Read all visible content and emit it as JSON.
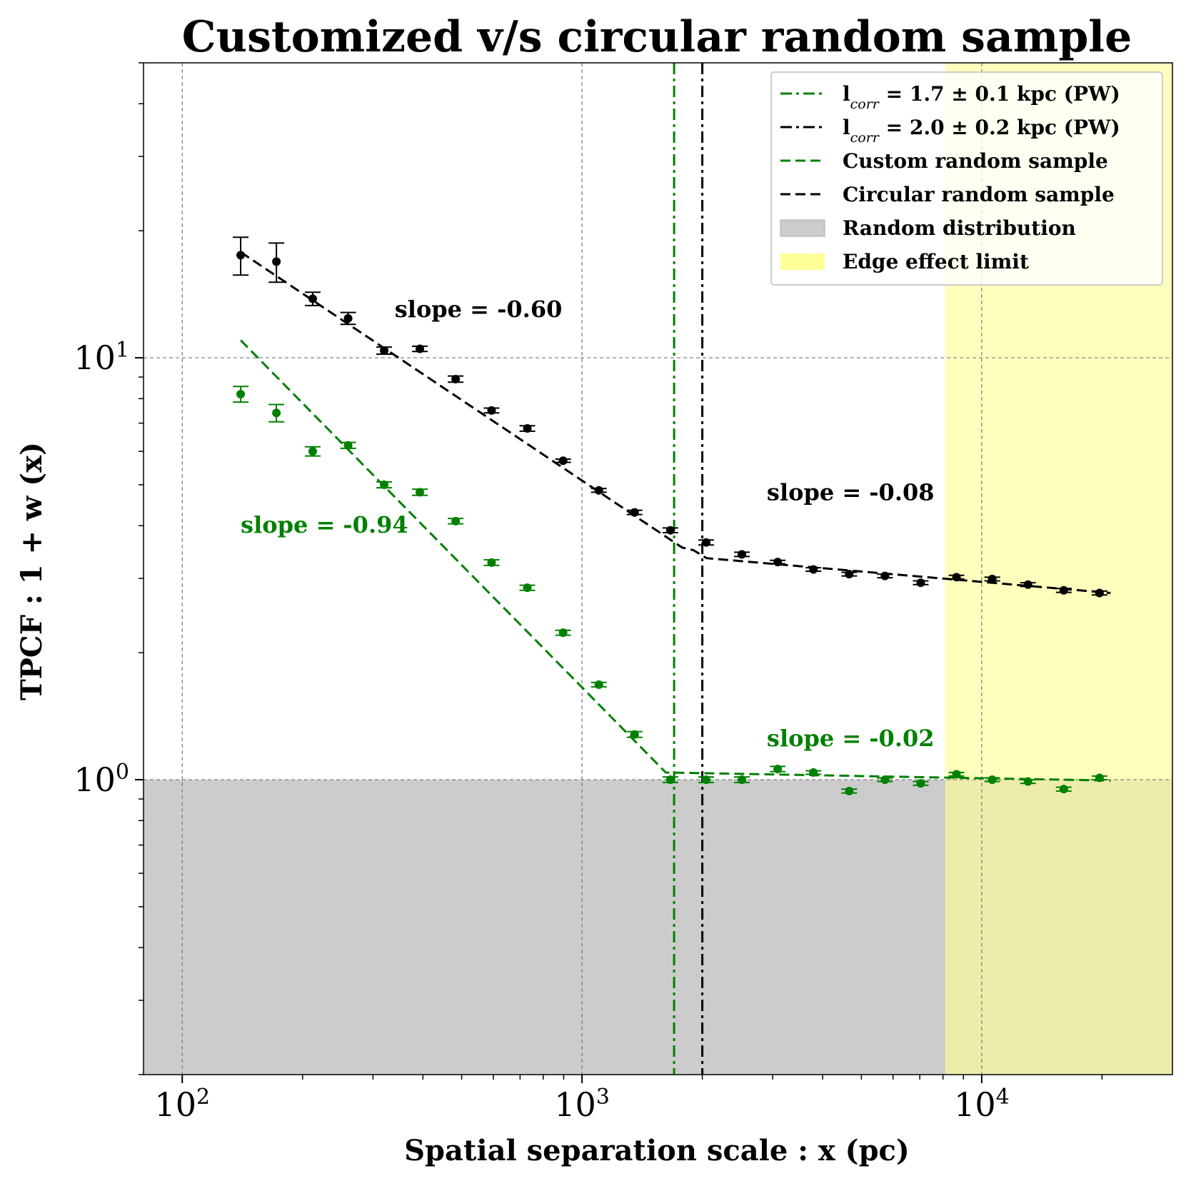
{
  "chart_data": {
    "type": "scatter",
    "title": "Customized v/s circular random sample",
    "xlabel": "Spatial separation scale : x (pc)",
    "ylabel": "TPCF : 1 + w (x)",
    "xscale": "log",
    "yscale": "log",
    "xlim": [
      80,
      30000
    ],
    "ylim": [
      0.2,
      50
    ],
    "xticks": [
      {
        "base": "10",
        "exp": "2",
        "value": 100
      },
      {
        "base": "10",
        "exp": "3",
        "value": 1000
      },
      {
        "base": "10",
        "exp": "4",
        "value": 10000
      }
    ],
    "yticks": [
      {
        "base": "10",
        "exp": "0",
        "value": 1
      },
      {
        "base": "10",
        "exp": "1",
        "value": 10
      }
    ],
    "grid": true,
    "legend_position": "top-right",
    "colors": {
      "green": "#008000",
      "black": "#000000",
      "random_fill": "#cccccc",
      "edge_fill": "#ffff99"
    },
    "series": [
      {
        "name": "Circular random sample",
        "color": "#000000",
        "points": [
          {
            "x": 140,
            "y": 17.5,
            "err": 1.8
          },
          {
            "x": 172,
            "y": 16.9,
            "err": 1.8
          },
          {
            "x": 212,
            "y": 13.8,
            "err": 0.5
          },
          {
            "x": 260,
            "y": 12.4,
            "err": 0.4
          },
          {
            "x": 320,
            "y": 10.4,
            "err": 0.2
          },
          {
            "x": 393,
            "y": 10.5,
            "err": 0.15
          },
          {
            "x": 483,
            "y": 8.9,
            "err": 0.15
          },
          {
            "x": 594,
            "y": 7.5,
            "err": 0.1
          },
          {
            "x": 730,
            "y": 6.8,
            "err": 0.1
          },
          {
            "x": 897,
            "y": 5.7,
            "err": 0.05
          },
          {
            "x": 1102,
            "y": 4.85,
            "err": 0.05
          },
          {
            "x": 1354,
            "y": 4.3,
            "err": 0.05
          },
          {
            "x": 1664,
            "y": 3.9,
            "err": 0.05
          },
          {
            "x": 2045,
            "y": 3.65,
            "err": 0.05
          },
          {
            "x": 2512,
            "y": 3.42,
            "err": 0.04
          },
          {
            "x": 3087,
            "y": 3.28,
            "err": 0.03
          },
          {
            "x": 3793,
            "y": 3.15,
            "err": 0.03
          },
          {
            "x": 4661,
            "y": 3.07,
            "err": 0.03
          },
          {
            "x": 5727,
            "y": 3.04,
            "err": 0.03
          },
          {
            "x": 7037,
            "y": 2.93,
            "err": 0.03
          },
          {
            "x": 8647,
            "y": 3.02,
            "err": 0.03
          },
          {
            "x": 10625,
            "y": 2.99,
            "err": 0.03
          },
          {
            "x": 13056,
            "y": 2.9,
            "err": 0.03
          },
          {
            "x": 16042,
            "y": 2.81,
            "err": 0.03
          },
          {
            "x": 19712,
            "y": 2.77,
            "err": 0.03
          }
        ],
        "fit": [
          [
            140,
            17.8
          ],
          [
            1780,
            3.55
          ],
          [
            1900,
            3.5
          ],
          [
            2050,
            3.35
          ],
          [
            21000,
            2.77
          ]
        ],
        "slopes": [
          {
            "text": "slope = -0.60",
            "x": 340,
            "y": 12.5
          },
          {
            "text": "slope = -0.08",
            "x": 2900,
            "y": 4.6
          }
        ]
      },
      {
        "name": "Custom random sample",
        "color": "#008000",
        "points": [
          {
            "x": 140,
            "y": 8.2,
            "err": 0.35
          },
          {
            "x": 172,
            "y": 7.4,
            "err": 0.35
          },
          {
            "x": 212,
            "y": 6.0,
            "err": 0.15
          },
          {
            "x": 260,
            "y": 6.2,
            "err": 0.1
          },
          {
            "x": 320,
            "y": 5.0,
            "err": 0.08
          },
          {
            "x": 393,
            "y": 4.8,
            "err": 0.08
          },
          {
            "x": 483,
            "y": 4.1,
            "err": 0.06
          },
          {
            "x": 594,
            "y": 3.27,
            "err": 0.05
          },
          {
            "x": 730,
            "y": 2.85,
            "err": 0.04
          },
          {
            "x": 897,
            "y": 2.23,
            "err": 0.03
          },
          {
            "x": 1102,
            "y": 1.68,
            "err": 0.02
          },
          {
            "x": 1354,
            "y": 1.28,
            "err": 0.02
          },
          {
            "x": 1664,
            "y": 1.0,
            "err": 0.015
          },
          {
            "x": 2045,
            "y": 1.0,
            "err": 0.015
          },
          {
            "x": 2512,
            "y": 1.0,
            "err": 0.015
          },
          {
            "x": 3087,
            "y": 1.06,
            "err": 0.015
          },
          {
            "x": 3793,
            "y": 1.04,
            "err": 0.01
          },
          {
            "x": 4661,
            "y": 0.94,
            "err": 0.01
          },
          {
            "x": 5727,
            "y": 1.0,
            "err": 0.01
          },
          {
            "x": 7037,
            "y": 0.98,
            "err": 0.01
          },
          {
            "x": 8647,
            "y": 1.03,
            "err": 0.01
          },
          {
            "x": 10625,
            "y": 1.0,
            "err": 0.01
          },
          {
            "x": 13056,
            "y": 0.99,
            "err": 0.01
          },
          {
            "x": 16042,
            "y": 0.95,
            "err": 0.01
          },
          {
            "x": 19712,
            "y": 1.01,
            "err": 0.01
          }
        ],
        "fit": [
          [
            140,
            11.0
          ],
          [
            1620,
            1.04
          ],
          [
            21000,
            0.995
          ]
        ],
        "slopes": [
          {
            "text": "slope = -0.94",
            "x": 140,
            "y": 3.85
          },
          {
            "text": "slope = -0.02",
            "x": 2900,
            "y": 1.2
          }
        ]
      }
    ],
    "vlines": [
      {
        "x": 1700,
        "color": "#008000",
        "style": "dashdot"
      },
      {
        "x": 2000,
        "color": "#000000",
        "style": "dashdot"
      }
    ],
    "regions": [
      {
        "name": "Random distribution",
        "y_max": 1.0,
        "color": "#cccccc"
      },
      {
        "name": "Edge effect limit",
        "x_min": 8100,
        "color": "#ffff99"
      }
    ],
    "legend": [
      {
        "type": "dashdot",
        "color": "#008000",
        "prefix": "l",
        "sub": "corr",
        "suffix": " = 1.7 ± 0.1 kpc (PW)"
      },
      {
        "type": "dashdot",
        "color": "#000000",
        "prefix": "l",
        "sub": "corr",
        "suffix": " = 2.0 ± 0.2 kpc (PW)"
      },
      {
        "type": "dashed",
        "color": "#008000",
        "prefix": "Custom random sample",
        "sub": "",
        "suffix": ""
      },
      {
        "type": "dashed",
        "color": "#000000",
        "prefix": "Circular random sample",
        "sub": "",
        "suffix": ""
      },
      {
        "type": "patch",
        "color": "#cccccc",
        "prefix": "Random distribution",
        "sub": "",
        "suffix": ""
      },
      {
        "type": "patch",
        "color": "#ffff99",
        "prefix": "Edge effect limit",
        "sub": "",
        "suffix": ""
      }
    ]
  }
}
